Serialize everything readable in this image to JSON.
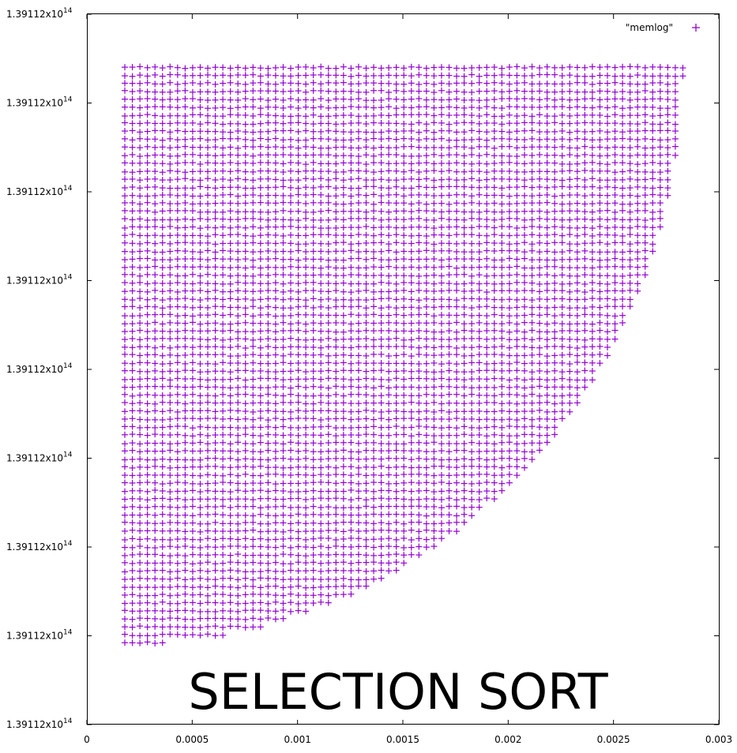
{
  "chart_data": {
    "type": "scatter",
    "title": "SELECTION SORT",
    "xlabel": "",
    "ylabel": "",
    "xlim": [
      0,
      0.003
    ],
    "ylim_relative": [
      0,
      8
    ],
    "x_ticks": [
      "0",
      "0.0005",
      "0.001",
      "0.0015",
      "0.002",
      "0.0025",
      "0.003"
    ],
    "y_ticks": [
      "1.39112x10",
      "1.39112x10",
      "1.39112x10",
      "1.39112x10",
      "1.39112x10",
      "1.39112x10",
      "1.39112x10",
      "1.39112x10",
      "1.39112x10"
    ],
    "y_tick_exponent": "14",
    "grid": false,
    "legend_position": "top-right",
    "series": [
      {
        "name": "\"memlog\"",
        "marker": "+",
        "color": "#9400d3",
        "x_start": 0.00018,
        "x_end": 0.00283,
        "x_step": 3.58e-05,
        "y_row_step": 0.09,
        "y_top_relative": 7.4,
        "y_bottom_relative": 0.9,
        "shape": "triangular upper-left region bounded by a convex lower-right curve"
      }
    ]
  }
}
